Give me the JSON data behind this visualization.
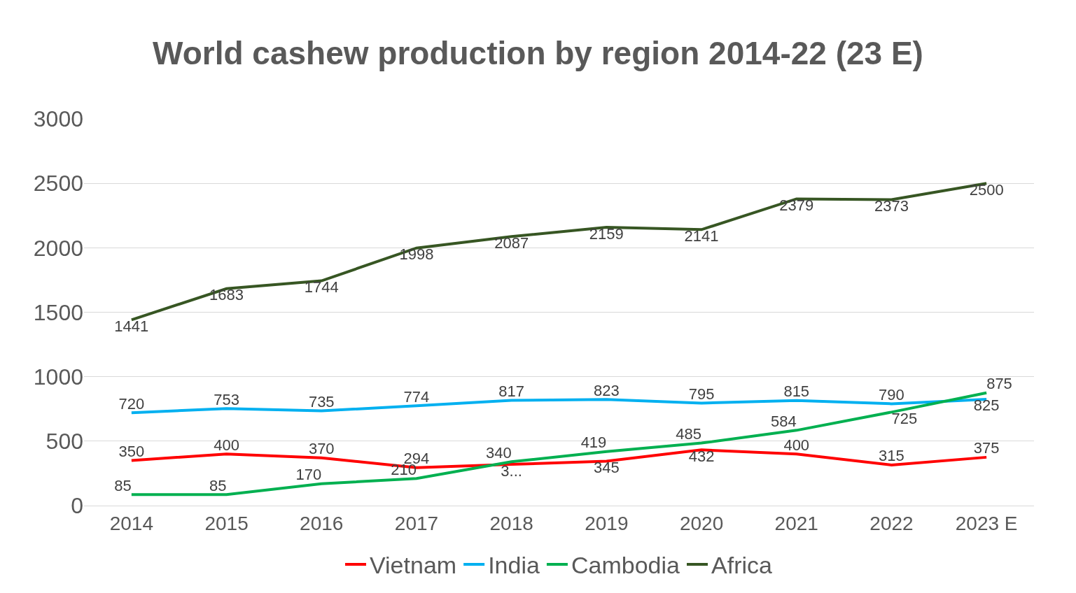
{
  "chart_data": {
    "type": "line",
    "title": "World cashew production by region 2014-22 (23 E)",
    "categories": [
      "2014",
      "2015",
      "2016",
      "2017",
      "2018",
      "2019",
      "2020",
      "2021",
      "2022",
      "2023 E"
    ],
    "series": [
      {
        "name": "Vietnam",
        "color": "#ff0000",
        "values": [
          350,
          400,
          370,
          294,
          320,
          345,
          432,
          400,
          315,
          375
        ],
        "value_labels": [
          "350",
          "400",
          "370",
          "294",
          "3...",
          "345",
          "432",
          "400",
          "315",
          "375"
        ]
      },
      {
        "name": "India",
        "color": "#00b0f0",
        "values": [
          720,
          753,
          735,
          774,
          817,
          823,
          795,
          815,
          790,
          825
        ],
        "value_labels": [
          "720",
          "753",
          "735",
          "774",
          "817",
          "823",
          "795",
          "815",
          "790",
          "825"
        ]
      },
      {
        "name": "Cambodia",
        "color": "#00b050",
        "values": [
          85,
          85,
          170,
          210,
          340,
          419,
          485,
          584,
          725,
          875
        ],
        "value_labels": [
          "85",
          "85",
          "170",
          "210",
          "340",
          "419",
          "485",
          "584",
          "725",
          "875"
        ]
      },
      {
        "name": "Africa",
        "color": "#375623",
        "values": [
          1441,
          1683,
          1744,
          1998,
          2087,
          2159,
          2141,
          2379,
          2373,
          2500
        ],
        "value_labels": [
          "1441",
          "1683",
          "1744",
          "1998",
          "2087",
          "2159",
          "2141",
          "2379",
          "2373",
          "2500"
        ]
      }
    ],
    "ylim": [
      0,
      3000
    ],
    "yticks": [
      0,
      500,
      1000,
      1500,
      2000,
      2500,
      3000
    ],
    "grid": "y",
    "legend": "bottom"
  }
}
